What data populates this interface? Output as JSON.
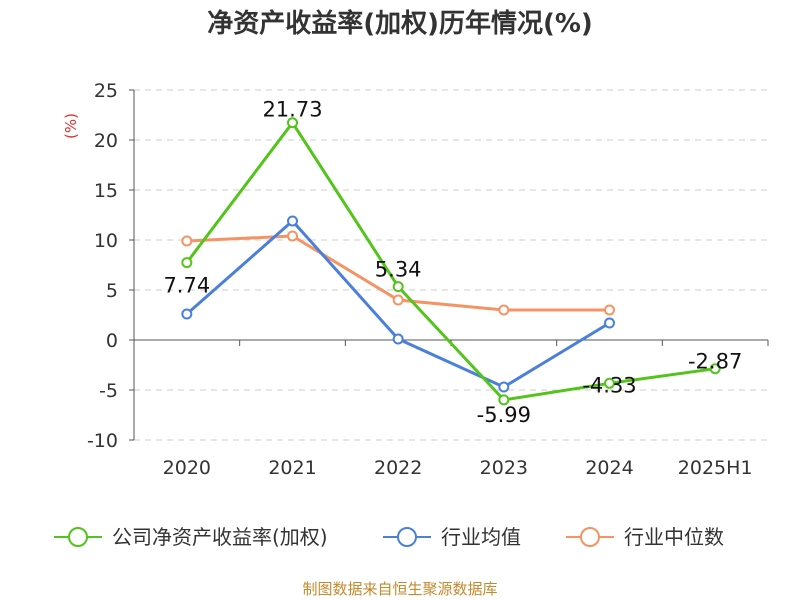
{
  "chart_data": {
    "type": "line",
    "title": "净资产收益率(加权)历年情况(%)",
    "ylabel": "(%)",
    "categories": [
      "2020",
      "2021",
      "2022",
      "2023",
      "2024",
      "2025H1"
    ],
    "ylim": [
      -10,
      25
    ],
    "yticks": [
      25,
      20,
      15,
      10,
      5,
      0,
      -5,
      -10
    ],
    "grid": true,
    "legend_position": "bottom",
    "series": [
      {
        "name": "公司净资产收益率(加权)",
        "color": "#52c41a",
        "values": [
          7.74,
          21.73,
          5.34,
          -5.99,
          -4.33,
          -2.87
        ],
        "labels": [
          "7.74",
          "21.73",
          "5.34",
          "-5.99",
          "-4.33",
          "-2.87"
        ]
      },
      {
        "name": "行业均值",
        "color": "#4a7fdb",
        "values": [
          2.6,
          11.9,
          0.1,
          -4.7,
          1.7,
          null
        ]
      },
      {
        "name": "行业中位数",
        "color": "#f59363",
        "values": [
          9.9,
          10.4,
          4.0,
          3.0,
          3.0,
          null
        ]
      }
    ]
  },
  "source": "制图数据来自恒生聚源数据库"
}
